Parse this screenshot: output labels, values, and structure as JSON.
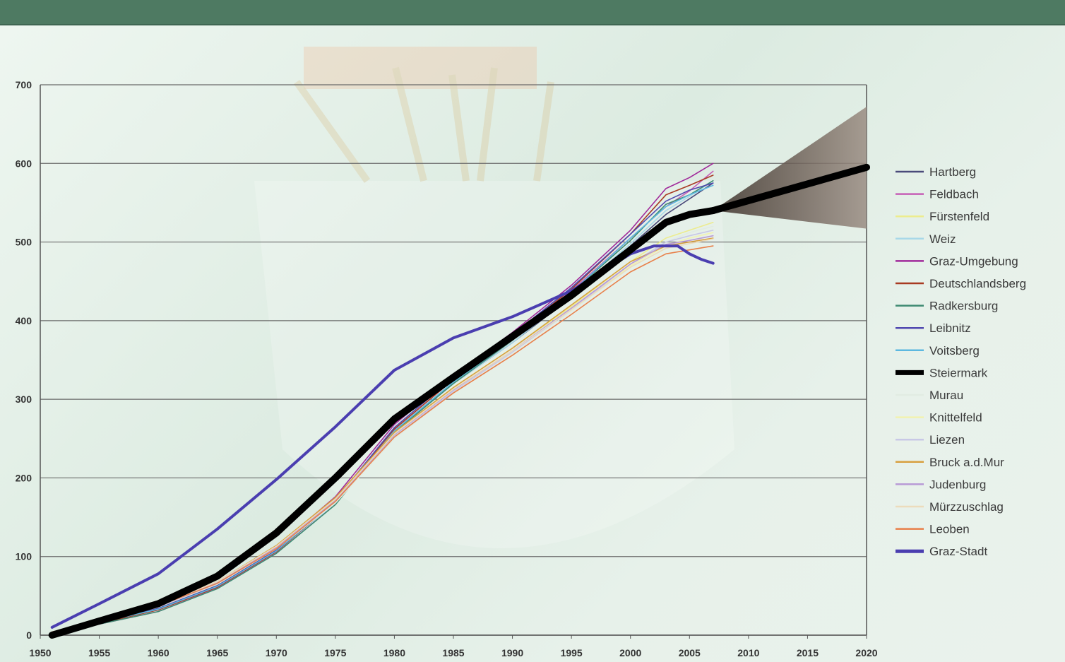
{
  "chart_data": {
    "type": "line",
    "title": "",
    "xlabel": "",
    "ylabel": "",
    "xlim": [
      1950,
      2020
    ],
    "ylim": [
      0,
      700
    ],
    "grid": "horizontal",
    "legend_position": "right",
    "x_ticks": [
      "1950",
      "1955",
      "1960",
      "1965",
      "1970",
      "1975",
      "1980",
      "1985",
      "1990",
      "1995",
      "2000",
      "2005",
      "2010",
      "2015",
      "2020"
    ],
    "y_ticks": [
      "0",
      "100",
      "200",
      "300",
      "400",
      "500",
      "600",
      "700"
    ],
    "forecast": {
      "series": "Steiermark",
      "x": [
        2007,
        2020
      ],
      "y": [
        540,
        595
      ],
      "upper": [
        540,
        672
      ],
      "lower": [
        540,
        517
      ]
    },
    "series": [
      {
        "name": "Hartberg",
        "color": "#4a4a7a",
        "width": 1.6,
        "x": [
          1951,
          1955,
          1960,
          1965,
          1970,
          1975,
          1980,
          1985,
          1990,
          1995,
          2000,
          2003,
          2005,
          2007
        ],
        "y": [
          3,
          15,
          33,
          62,
          108,
          170,
          260,
          320,
          372,
          430,
          495,
          535,
          555,
          575
        ]
      },
      {
        "name": "Feldbach",
        "color": "#c660b6",
        "width": 1.6,
        "x": [
          1951,
          1955,
          1960,
          1965,
          1970,
          1975,
          1980,
          1985,
          1990,
          1995,
          2000,
          2003,
          2005,
          2007
        ],
        "y": [
          2,
          14,
          30,
          60,
          105,
          168,
          262,
          325,
          378,
          438,
          505,
          545,
          565,
          590
        ]
      },
      {
        "name": "Fürstenfeld",
        "color": "#ecec8e",
        "width": 1.6,
        "x": [
          1951,
          1955,
          1960,
          1965,
          1970,
          1975,
          1980,
          1985,
          1990,
          1995,
          2000,
          2003,
          2005,
          2007
        ],
        "y": [
          3,
          16,
          34,
          63,
          108,
          168,
          255,
          315,
          365,
          418,
          475,
          505,
          515,
          525
        ]
      },
      {
        "name": "Weiz",
        "color": "#a8d8e8",
        "width": 1.6,
        "x": [
          1951,
          1955,
          1960,
          1965,
          1970,
          1975,
          1980,
          1985,
          1990,
          1995,
          2000,
          2003,
          2005,
          2007
        ],
        "y": [
          3,
          16,
          33,
          62,
          106,
          168,
          258,
          320,
          372,
          432,
          498,
          540,
          558,
          578
        ]
      },
      {
        "name": "Graz-Umgebung",
        "color": "#a0289a",
        "width": 1.6,
        "x": [
          1951,
          1955,
          1960,
          1965,
          1970,
          1975,
          1980,
          1985,
          1990,
          1995,
          2000,
          2003,
          2005,
          2007
        ],
        "y": [
          4,
          18,
          36,
          66,
          112,
          176,
          268,
          330,
          385,
          445,
          515,
          568,
          582,
          600
        ]
      },
      {
        "name": "Deutschlandsberg",
        "color": "#a83a22",
        "width": 1.6,
        "x": [
          1951,
          1955,
          1960,
          1965,
          1970,
          1975,
          1980,
          1985,
          1990,
          1995,
          2000,
          2003,
          2005,
          2007
        ],
        "y": [
          3,
          15,
          32,
          61,
          106,
          170,
          262,
          325,
          380,
          440,
          510,
          560,
          572,
          585
        ]
      },
      {
        "name": "Radkersburg",
        "color": "#3e8a72",
        "width": 1.6,
        "x": [
          1951,
          1955,
          1960,
          1965,
          1970,
          1975,
          1980,
          1985,
          1990,
          1995,
          2000,
          2003,
          2005,
          2007
        ],
        "y": [
          2,
          14,
          30,
          59,
          104,
          166,
          258,
          320,
          375,
          436,
          502,
          548,
          560,
          578
        ]
      },
      {
        "name": "Leibnitz",
        "color": "#5048b0",
        "width": 1.6,
        "x": [
          1951,
          1955,
          1960,
          1965,
          1970,
          1975,
          1980,
          1985,
          1990,
          1995,
          2000,
          2003,
          2005,
          2007
        ],
        "y": [
          3,
          16,
          34,
          63,
          108,
          172,
          264,
          328,
          382,
          442,
          510,
          552,
          566,
          575
        ]
      },
      {
        "name": "Voitsberg",
        "color": "#5cb8e0",
        "width": 1.6,
        "x": [
          1951,
          1955,
          1960,
          1965,
          1970,
          1975,
          1980,
          1985,
          1990,
          1995,
          2000,
          2003,
          2005,
          2007
        ],
        "y": [
          3,
          16,
          33,
          62,
          107,
          170,
          260,
          322,
          376,
          436,
          505,
          545,
          560,
          572
        ]
      },
      {
        "name": "Murau",
        "color": "#e2ece2",
        "width": 1.6,
        "x": [
          1951,
          1955,
          1960,
          1965,
          1970,
          1975,
          1980,
          1985,
          1990,
          1995,
          2000,
          2003,
          2005,
          2007
        ],
        "y": [
          3,
          17,
          36,
          66,
          110,
          168,
          250,
          308,
          358,
          412,
          468,
          500,
          512,
          520
        ]
      },
      {
        "name": "Knittelfeld",
        "color": "#f2f2b0",
        "width": 1.6,
        "x": [
          1951,
          1955,
          1960,
          1965,
          1970,
          1975,
          1980,
          1985,
          1990,
          1995,
          2000,
          2003,
          2005,
          2007
        ],
        "y": [
          4,
          18,
          37,
          67,
          112,
          172,
          255,
          312,
          360,
          415,
          470,
          495,
          505,
          512
        ]
      },
      {
        "name": "Liezen",
        "color": "#c8c8e6",
        "width": 1.6,
        "x": [
          1951,
          1955,
          1960,
          1965,
          1970,
          1975,
          1980,
          1985,
          1990,
          1995,
          2000,
          2003,
          2005,
          2007
        ],
        "y": [
          3,
          17,
          36,
          66,
          110,
          170,
          253,
          310,
          360,
          414,
          472,
          500,
          508,
          515
        ]
      },
      {
        "name": "Bruck a.d.Mur",
        "color": "#d8a040",
        "width": 1.6,
        "x": [
          1951,
          1955,
          1960,
          1965,
          1970,
          1975,
          1980,
          1985,
          1990,
          1995,
          2000,
          2003,
          2005,
          2007
        ],
        "y": [
          4,
          18,
          38,
          68,
          114,
          175,
          258,
          315,
          365,
          420,
          475,
          495,
          500,
          505
        ]
      },
      {
        "name": "Judenburg",
        "color": "#b89ad6",
        "width": 1.6,
        "x": [
          1951,
          1955,
          1960,
          1965,
          1970,
          1975,
          1980,
          1985,
          1990,
          1995,
          2000,
          2003,
          2005,
          2007
        ],
        "y": [
          4,
          18,
          37,
          67,
          112,
          172,
          255,
          312,
          362,
          416,
          472,
          497,
          502,
          508
        ]
      },
      {
        "name": "Mürzzuschlag",
        "color": "#ecdcbc",
        "width": 1.6,
        "x": [
          1951,
          1955,
          1960,
          1965,
          1970,
          1975,
          1980,
          1985,
          1990,
          1995,
          2000,
          2003,
          2005,
          2007
        ],
        "y": [
          4,
          18,
          38,
          68,
          113,
          173,
          256,
          313,
          362,
          414,
          468,
          492,
          498,
          504
        ]
      },
      {
        "name": "Leoben",
        "color": "#e8804a",
        "width": 1.6,
        "x": [
          1951,
          1955,
          1960,
          1965,
          1970,
          1975,
          1980,
          1985,
          1990,
          1995,
          2000,
          2003,
          2005,
          2007
        ],
        "y": [
          4,
          18,
          37,
          66,
          110,
          170,
          252,
          308,
          356,
          408,
          462,
          485,
          490,
          495
        ]
      },
      {
        "name": "Graz-Stadt",
        "color": "#4a3eb0",
        "width": 4,
        "x": [
          1951,
          1955,
          1960,
          1965,
          1970,
          1975,
          1980,
          1985,
          1990,
          1995,
          2000,
          2002,
          2004,
          2005,
          2006,
          2007
        ],
        "y": [
          10,
          40,
          78,
          135,
          198,
          265,
          337,
          378,
          405,
          438,
          485,
          495,
          495,
          485,
          478,
          473
        ]
      },
      {
        "name": "Steiermark",
        "color": "#000000",
        "width": 10,
        "x": [
          1951,
          1955,
          1960,
          1965,
          1970,
          1975,
          1980,
          1985,
          1990,
          1995,
          2000,
          2003,
          2005,
          2007
        ],
        "y": [
          0,
          18,
          40,
          75,
          130,
          200,
          275,
          328,
          380,
          432,
          490,
          525,
          535,
          540
        ]
      }
    ],
    "legend_order": [
      "Hartberg",
      "Feldbach",
      "Fürstenfeld",
      "Weiz",
      "Graz-Umgebung",
      "Deutschlandsberg",
      "Radkersburg",
      "Leibnitz",
      "Voitsberg",
      "Steiermark",
      "Murau",
      "Knittelfeld",
      "Liezen",
      "Bruck a.d.Mur",
      "Judenburg",
      "Mürzzuschlag",
      "Leoben",
      "Graz-Stadt"
    ]
  }
}
